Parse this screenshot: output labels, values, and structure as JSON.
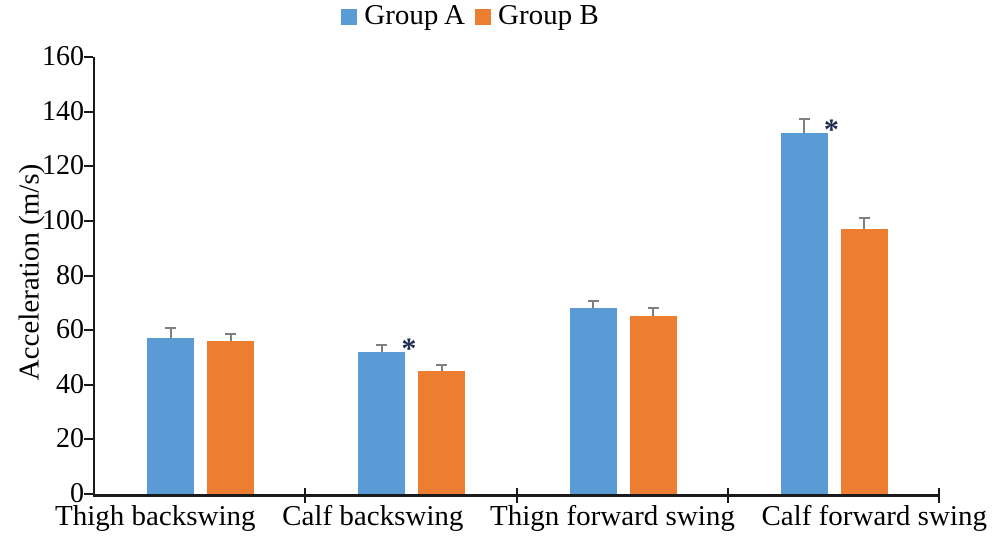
{
  "legend": {
    "items": [
      {
        "label": "Group A",
        "color": "#5B9BD5"
      },
      {
        "label": "Group B",
        "color": "#ED7D31"
      }
    ]
  },
  "y_axis": {
    "label": "Acceleration (m/s)",
    "tick_values": [
      0,
      20,
      40,
      60,
      80,
      100,
      120,
      140,
      160
    ],
    "min": 0,
    "max": 160
  },
  "chart_data": {
    "type": "bar",
    "title": "",
    "categories": [
      "Thigh backswing",
      "Calf backswing",
      "Thign forward swing",
      "Calf forward swing"
    ],
    "series": [
      {
        "name": "Group A",
        "color": "#5B9BD5",
        "values": [
          57,
          52,
          68,
          132
        ],
        "errors": [
          4,
          3,
          3,
          5.5
        ]
      },
      {
        "name": "Group B",
        "color": "#ED7D31",
        "values": [
          56,
          45,
          65,
          97
        ],
        "errors": [
          3,
          2.5,
          3.5,
          4.5
        ]
      }
    ],
    "xlabel": "",
    "ylabel": "Acceleration (m/s)",
    "ylim": [
      0,
      160
    ],
    "ytick_step": 20,
    "grid": false,
    "legend_position": "top-center",
    "error_bar_color": "#7F7F7F",
    "axis_color": "#1a1a1a",
    "annotations": [
      {
        "text": "*",
        "category": "Calf backswing",
        "series": "Group A",
        "color": "#1e2b4f"
      },
      {
        "text": "*",
        "category": "Calf forward swing",
        "series": "Group A",
        "color": "#1e2b4f"
      }
    ]
  }
}
